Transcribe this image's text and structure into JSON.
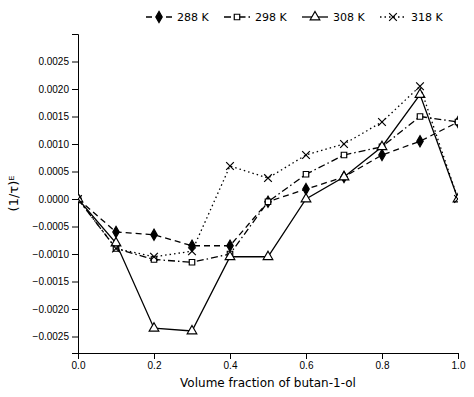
{
  "chart_data": {
    "type": "line",
    "xlabel": "Volume fraction of butan-1-ol",
    "ylabel": "(1/τ)ᴱ",
    "x": [
      0.0,
      0.1,
      0.2,
      0.3,
      0.4,
      0.5,
      0.6,
      0.7,
      0.8,
      0.9,
      1.0
    ],
    "series": [
      {
        "name": "288 K",
        "color": "black",
        "marker": "diamond",
        "line_style": "dashed",
        "values": [
          0.0,
          -0.0006,
          -0.00065,
          -0.00085,
          -0.00085,
          -5e-05,
          0.00018,
          0.0004,
          0.0008,
          0.00105,
          0.0014
        ]
      },
      {
        "name": "298 K",
        "color": "black",
        "marker": "square-open",
        "line_style": "dashdot",
        "values": [
          0.0,
          -0.0009,
          -0.0011,
          -0.00115,
          -0.001,
          -5e-05,
          0.00045,
          0.0008,
          0.00095,
          0.0015,
          0.0014
        ]
      },
      {
        "name": "308 K",
        "color": "black",
        "marker": "triangle-open",
        "line_style": "solid",
        "values": [
          0.0,
          -0.0008,
          -0.00235,
          -0.0024,
          -0.00105,
          -0.00105,
          0.0,
          0.0004,
          0.00095,
          0.0019,
          0.0
        ]
      },
      {
        "name": "318 K",
        "color": "black",
        "marker": "x",
        "line_style": "dotted",
        "values": [
          0.0,
          -0.0009,
          -0.00105,
          -0.00095,
          0.0006,
          0.00038,
          0.0008,
          0.001,
          0.0014,
          0.00205,
          0.0
        ]
      }
    ],
    "xlim": [
      0.0,
      1.0
    ],
    "ylim": [
      -0.0028,
      0.003
    ],
    "xticks": [
      {
        "value": 0.0,
        "label": "0.0"
      },
      0.2,
      0.4,
      0.6,
      0.8,
      {
        "value": 1.0,
        "label": "1.0"
      }
    ],
    "yticks": [
      {
        "value": -0.0025,
        "label": "−0.0025"
      },
      {
        "value": -0.002,
        "label": "−0.0020"
      },
      {
        "value": -0.0015,
        "label": "−0.0015"
      },
      {
        "value": -0.001,
        "label": "−0.0010"
      },
      {
        "value": -0.0005,
        "label": "−0.0005"
      },
      {
        "value": 0.0,
        "label": "0.0000"
      },
      0.0005,
      {
        "value": 0.001,
        "label": "0.0010"
      },
      0.0015,
      {
        "value": 0.002,
        "label": "0.0020"
      },
      0.0025
    ],
    "grid": false,
    "legend": "upper-right"
  }
}
